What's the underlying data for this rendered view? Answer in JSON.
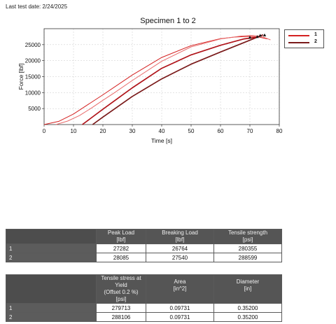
{
  "header": {
    "test_date": "Last test date: 2/24/2025"
  },
  "chart_data": {
    "type": "line",
    "title": "Specimen 1 to 2",
    "xlabel": "Time [s]",
    "ylabel": "Force [lbf]",
    "xlim": [
      0,
      80
    ],
    "ylim": [
      0,
      30000
    ],
    "x_ticks": [
      0,
      10,
      20,
      30,
      40,
      50,
      60,
      70,
      80
    ],
    "y_ticks": [
      5000,
      10000,
      15000,
      20000,
      25000
    ],
    "grid": true,
    "legend_position": "outside-right",
    "series": [
      {
        "name": "1",
        "color": "#d42020",
        "x": [
          0,
          5,
          10,
          15,
          20,
          30,
          40,
          50,
          60,
          65,
          70,
          73,
          75,
          76
        ],
        "y": [
          0,
          1000,
          3300,
          6300,
          9300,
          15500,
          21000,
          24700,
          26900,
          27400,
          27600,
          27400,
          27000,
          26800
        ]
      },
      {
        "name": "",
        "color": "#e86a6a",
        "x": [
          4,
          8,
          12,
          16,
          20,
          24,
          30,
          40,
          50,
          60,
          67,
          71,
          74,
          77
        ],
        "y": [
          0,
          1100,
          2800,
          5100,
          7600,
          10000,
          13800,
          19800,
          24300,
          26800,
          27700,
          27900,
          27600,
          26500
        ]
      },
      {
        "name": "2",
        "color": "#7a1a1a",
        "x": [
          16.5,
          20,
          30,
          40,
          50,
          60,
          70,
          74.5
        ],
        "y": [
          0,
          2350,
          8800,
          14300,
          18900,
          22700,
          26400,
          28085
        ]
      },
      {
        "name": "",
        "color": "#b0141a",
        "x": [
          13,
          20,
          30,
          40,
          50,
          60,
          68,
          72
        ],
        "y": [
          0,
          4800,
          11500,
          17600,
          21800,
          24800,
          26800,
          27282
        ]
      }
    ],
    "markers": [
      {
        "x": 70,
        "y": 27300
      },
      {
        "x": 72.5,
        "y": 27500
      },
      {
        "x": 73.5,
        "y": 27900
      },
      {
        "x": 75,
        "y": 28000
      }
    ]
  },
  "table1": {
    "headers": [
      {
        "line1": "Peak Load",
        "line2": "[lbf]"
      },
      {
        "line1": "Breaking Load",
        "line2": "[lbf]"
      },
      {
        "line1": "Tensile strength",
        "line2": "[psi]"
      }
    ],
    "rows": [
      {
        "label": "1",
        "values": [
          "27282",
          "26764",
          "280355"
        ]
      },
      {
        "label": "2",
        "values": [
          "28085",
          "27540",
          "288599"
        ]
      }
    ]
  },
  "table2": {
    "headers": [
      {
        "line1": "Tensile stress at Yield",
        "line2": "(Offset 0.2 %)",
        "line3": "[psi]"
      },
      {
        "line1": "Area",
        "line2": "[in^2]",
        "line3": ""
      },
      {
        "line1": "Diameter",
        "line2": "[in]",
        "line3": ""
      }
    ],
    "rows": [
      {
        "label": "1",
        "values": [
          "279713",
          "0.09731",
          "0.35200"
        ]
      },
      {
        "label": "2",
        "values": [
          "288106",
          "0.09731",
          "0.35200"
        ]
      }
    ]
  }
}
